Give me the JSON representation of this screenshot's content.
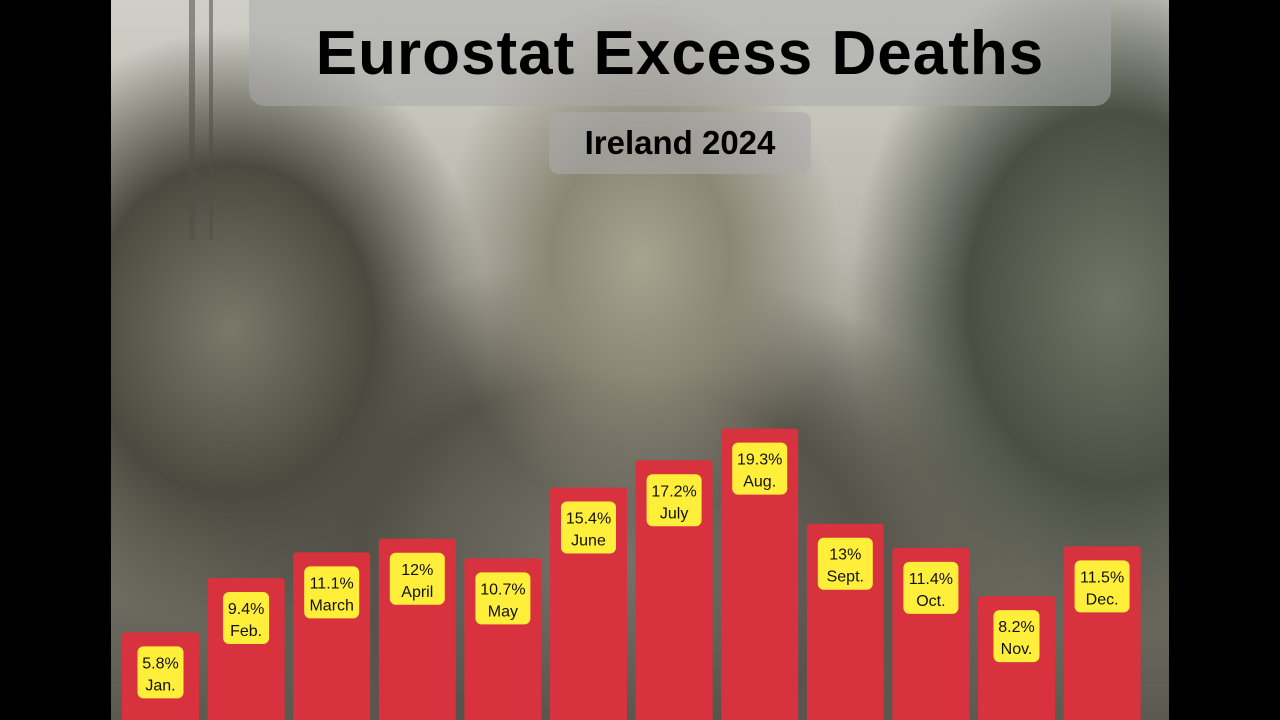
{
  "header": {
    "title": "Eurostat Excess Deaths",
    "subtitle": "Ireland 2024"
  },
  "chart_data": {
    "type": "bar",
    "title": "Eurostat Excess Deaths",
    "subtitle": "Ireland 2024",
    "categories": [
      "Jan.",
      "Feb.",
      "March",
      "April",
      "May",
      "June",
      "July",
      "Aug.",
      "Sept.",
      "Oct.",
      "Nov.",
      "Dec."
    ],
    "values": [
      5.8,
      9.4,
      11.1,
      12,
      10.7,
      15.4,
      17.2,
      19.3,
      13,
      11.4,
      8.2,
      11.5
    ],
    "value_labels": [
      "5.8%",
      "9.4%",
      "11.1%",
      "12%",
      "10.7%",
      "15.4%",
      "17.2%",
      "19.3%",
      "13%",
      "11.4%",
      "8.2%",
      "11.5%"
    ],
    "unit": "%",
    "xlabel": "",
    "ylabel": "",
    "colors": {
      "bar": "#d9323f",
      "label_bg": "#ffee3a"
    }
  }
}
